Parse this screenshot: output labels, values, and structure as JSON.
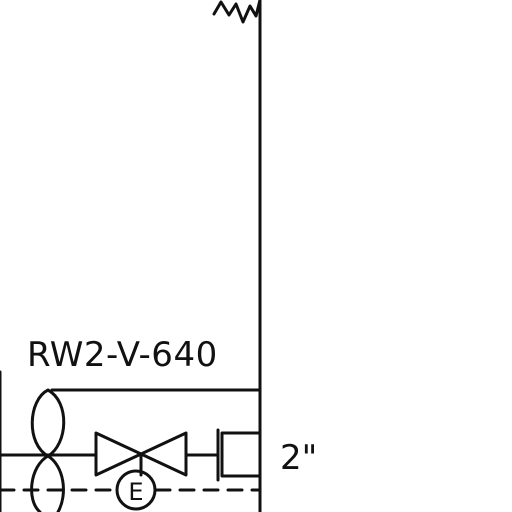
{
  "diagram": {
    "valve_tag": "RW2-V-640",
    "line_size": "2\"",
    "actuator_letter": "E",
    "ink_color": "#111111",
    "background_color": "#ffffff"
  }
}
